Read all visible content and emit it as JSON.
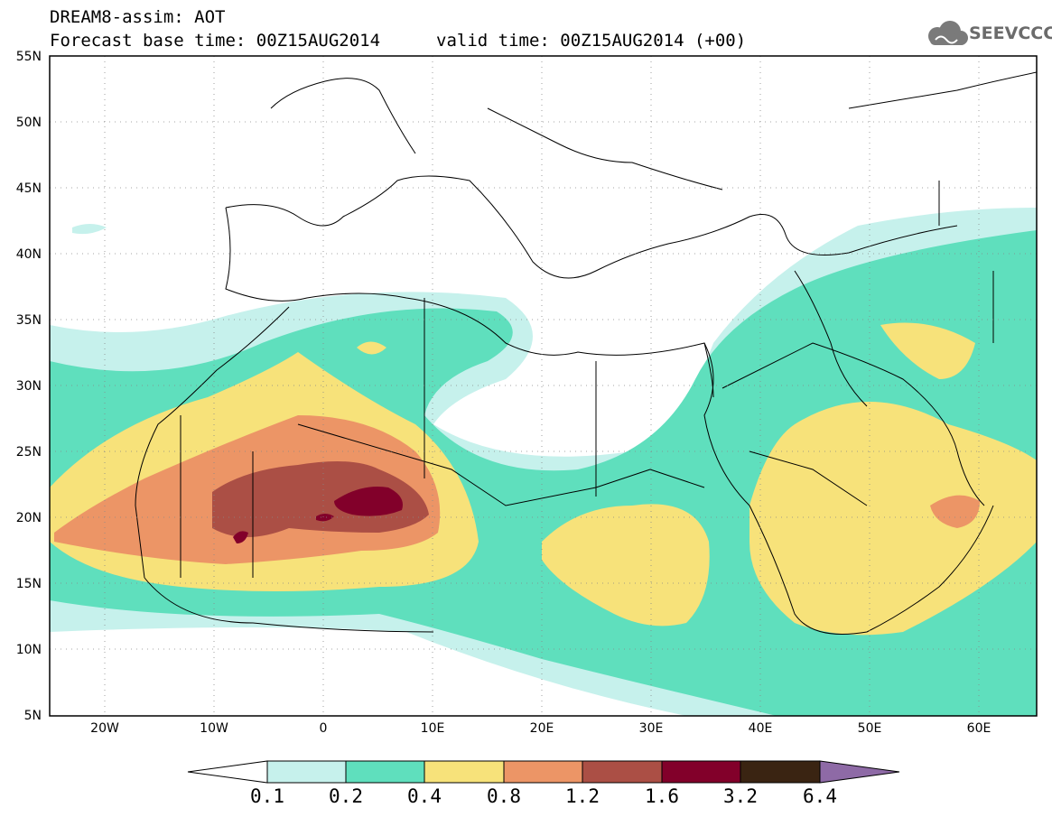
{
  "header": {
    "title": "DREAM8-assim: AOT",
    "base_time": "Forecast base time: 00Z15AUG2014",
    "valid_time": "valid time: 00Z15AUG2014 (+00)"
  },
  "logo": {
    "text": "SEEVCCC",
    "icon": "cloud-icon"
  },
  "map": {
    "variable": "AOT",
    "lon_range": [
      -25,
      65
    ],
    "lat_range": [
      5,
      55
    ],
    "lat_labels": [
      "55N",
      "50N",
      "45N",
      "40N",
      "35N",
      "30N",
      "25N",
      "20N",
      "15N",
      "10N",
      "5N"
    ],
    "lon_labels": [
      "20W",
      "10W",
      "0",
      "10E",
      "20E",
      "30E",
      "40E",
      "50E",
      "60E"
    ],
    "grid": "dotted",
    "max_region": "central Sahara (Mali/Algeria/Niger border), AOT > 1.6"
  },
  "colorbar": {
    "levels": [
      "0.1",
      "0.2",
      "0.4",
      "0.8",
      "1.2",
      "1.6",
      "3.2",
      "6.4"
    ],
    "colors": [
      "#ffffff",
      "#c6f1ec",
      "#5fdfbd",
      "#f7e27a",
      "#ec9566",
      "#ab4f45",
      "#82002a",
      "#3a2412",
      "#8e6aa6"
    ]
  }
}
